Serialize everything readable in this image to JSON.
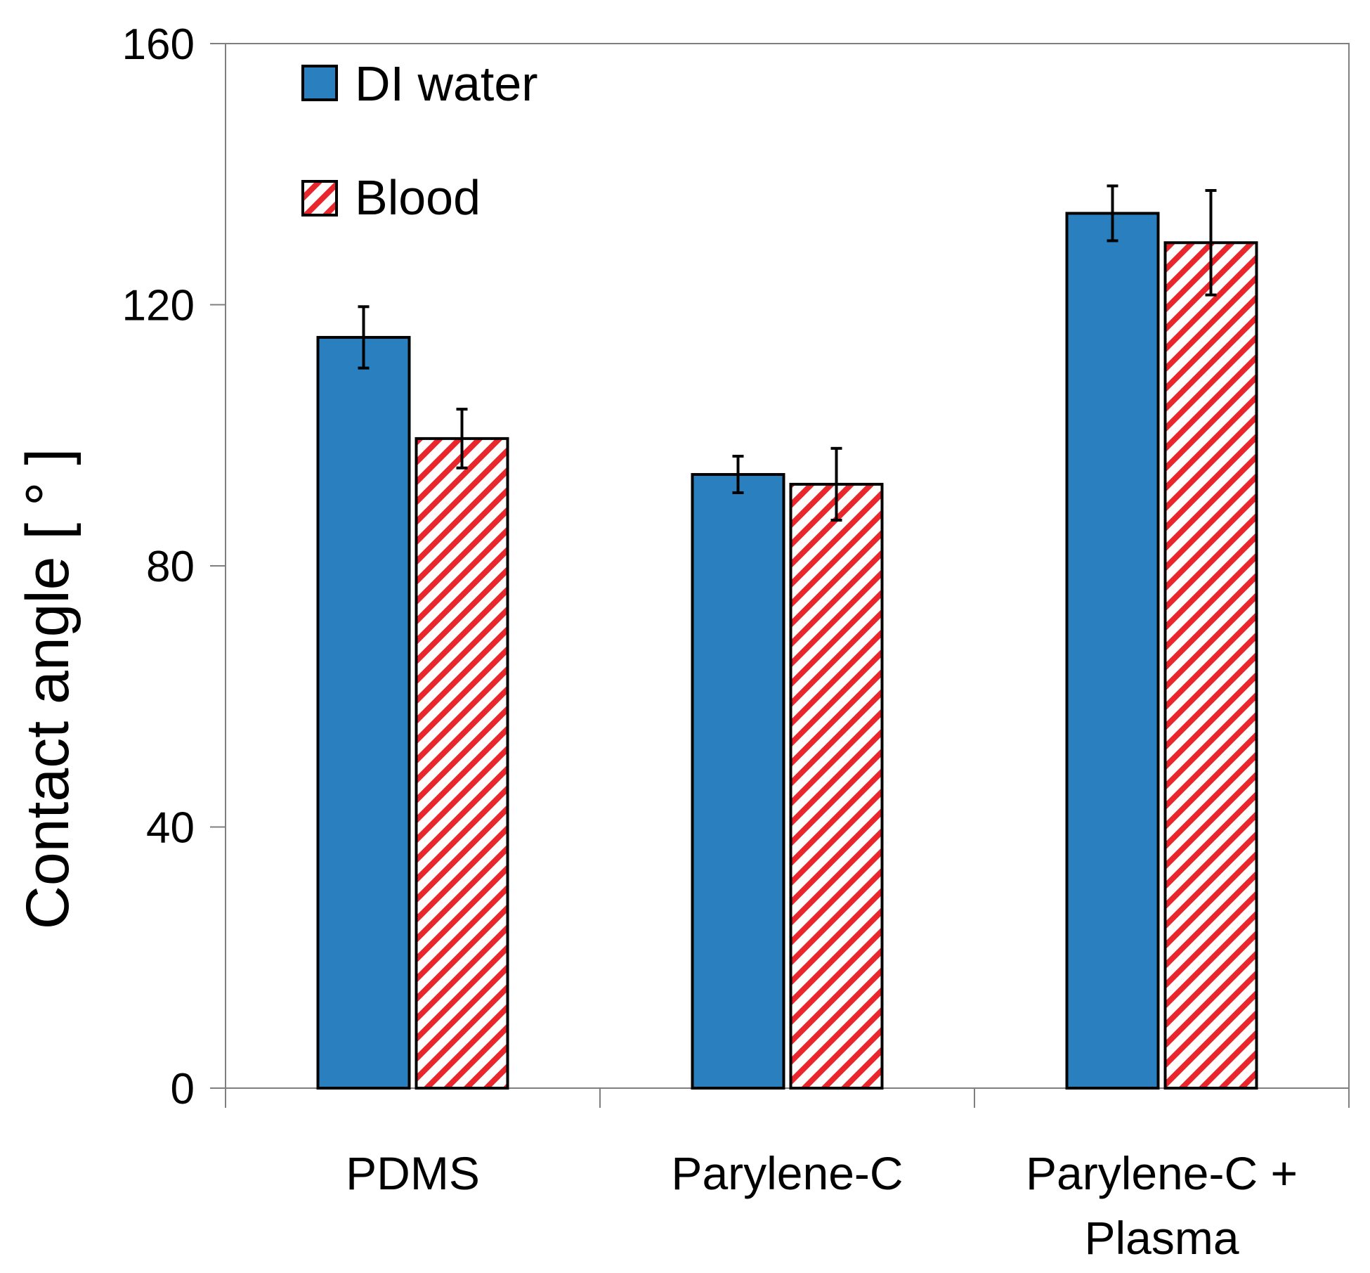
{
  "chart_data": {
    "type": "bar",
    "categories": [
      "PDMS",
      "Parylene-C",
      "Parylene-C +\nPlasma"
    ],
    "series": [
      {
        "name": "DI water",
        "values": [
          115,
          94,
          134
        ],
        "errors": [
          4.7,
          2.8,
          4.2
        ],
        "color": "#2a7fbf",
        "pattern": "solid"
      },
      {
        "name": "Blood",
        "values": [
          99.5,
          92.5,
          129.5
        ],
        "errors": [
          4.5,
          5.5,
          8.0
        ],
        "color": "#e8262b",
        "pattern": "diagonal-hatch"
      }
    ],
    "xlabel": "",
    "ylabel": "Contact angle [ ° ]",
    "ylim": [
      0,
      160
    ],
    "yticks": [
      "0",
      "40",
      "80",
      "120",
      "160"
    ],
    "grid": false,
    "legend_position": "top-left"
  }
}
